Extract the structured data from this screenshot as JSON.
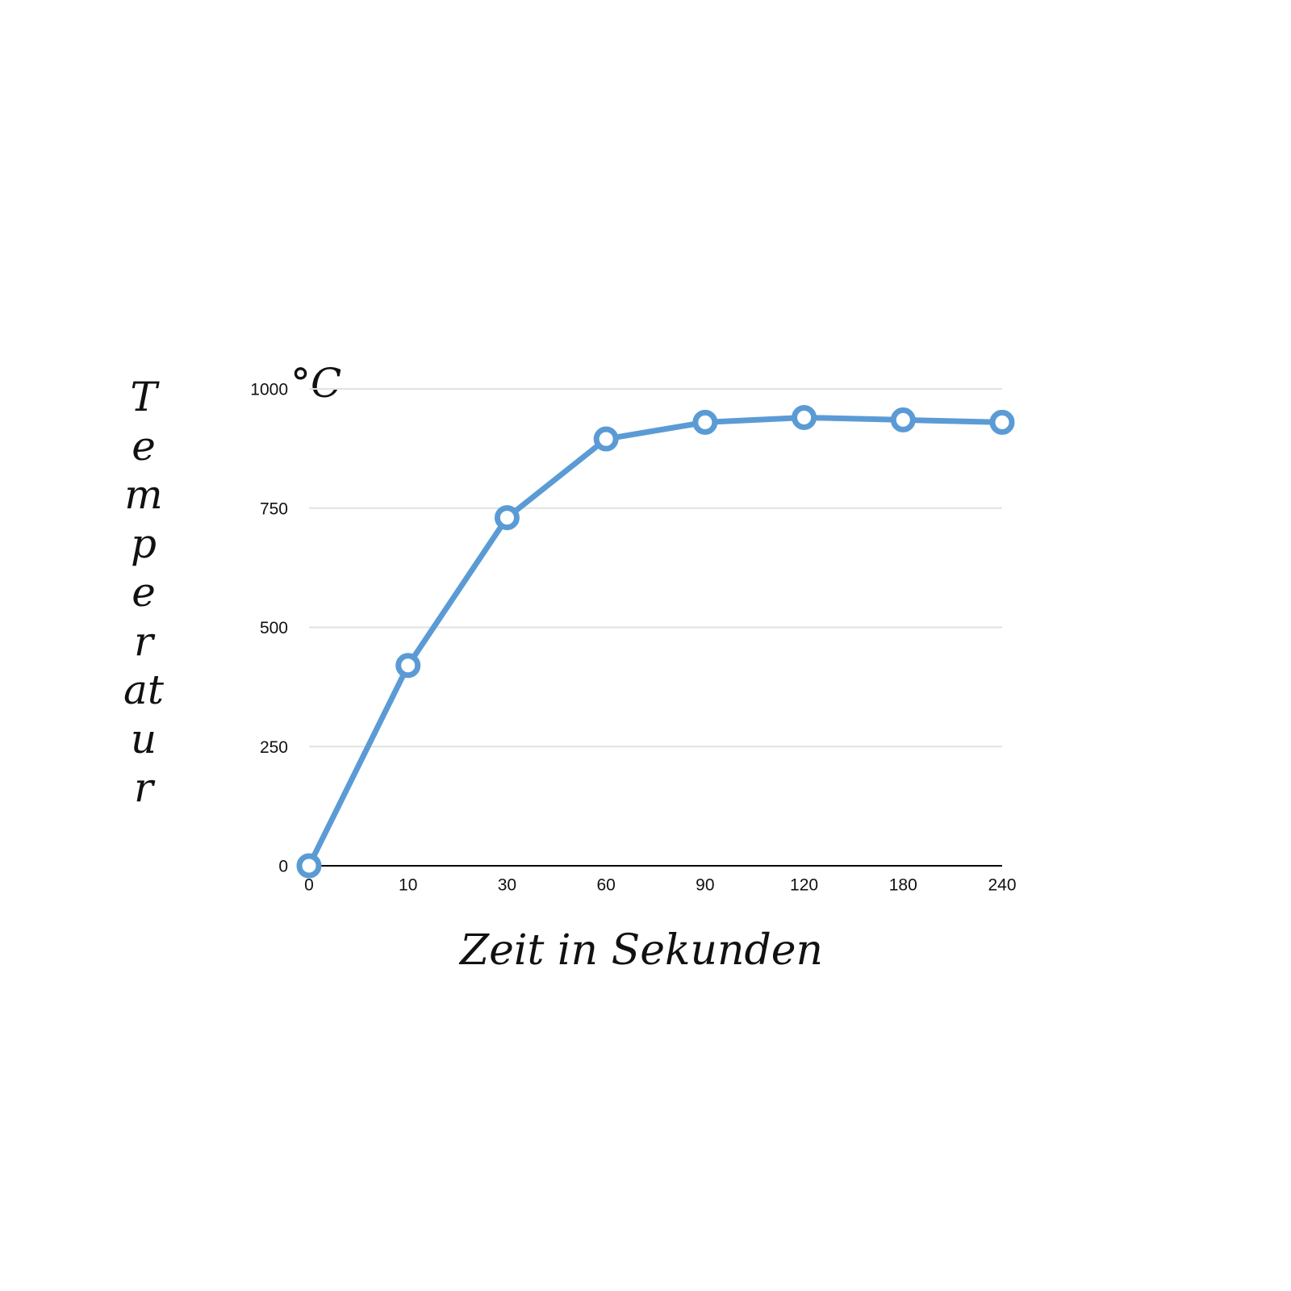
{
  "chart_data": {
    "type": "line",
    "x_label": "Zeit in Sekunden",
    "y_label": "Temperatur",
    "y_unit": "°C",
    "categories": [
      "0",
      "10",
      "30",
      "60",
      "90",
      "120",
      "180",
      "240"
    ],
    "series": [
      {
        "color": "#5b9bd5",
        "values": [
          0,
          420,
          730,
          895,
          930,
          940,
          935,
          930
        ]
      }
    ],
    "ylim": [
      0,
      1000
    ],
    "yticks": [
      0,
      250,
      500,
      750,
      1000
    ],
    "grid": true
  }
}
